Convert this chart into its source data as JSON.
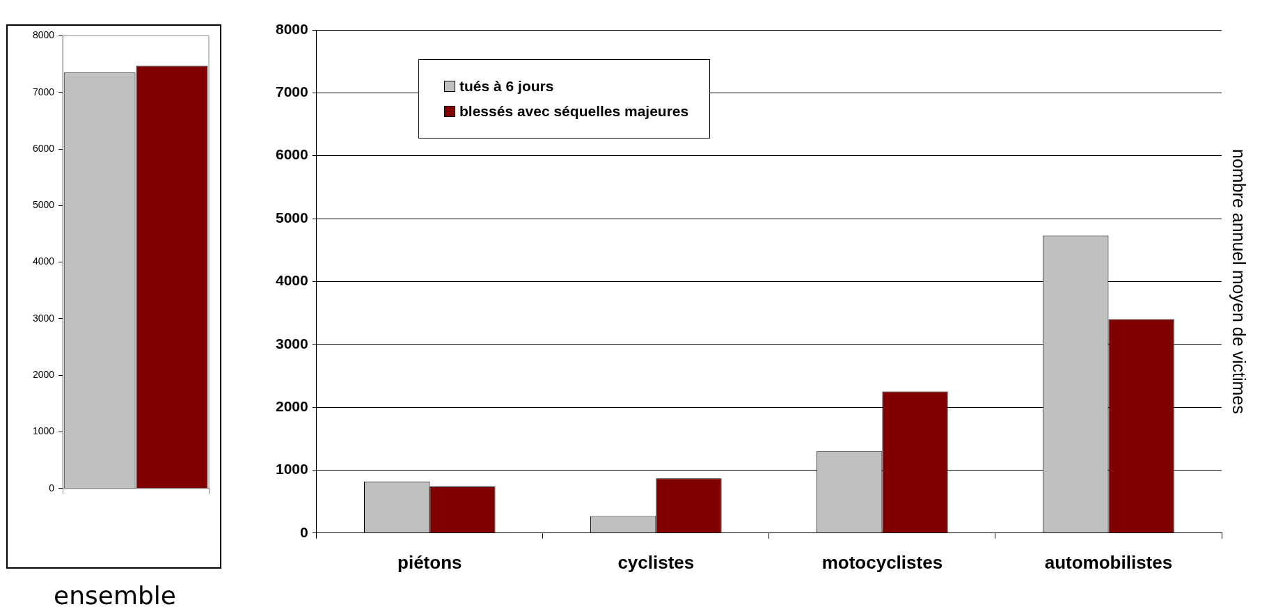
{
  "chart_data": [
    {
      "type": "bar",
      "xlabel": "ensemble",
      "categories": [
        null
      ],
      "series": [
        {
          "color": "#c0c0c0",
          "values": [
            7350
          ]
        },
        {
          "color": "#800000",
          "values": [
            7470
          ]
        }
      ],
      "ylim": [
        0,
        8000
      ],
      "yticks": [
        0,
        1000,
        2000,
        3000,
        4000,
        5000,
        6000,
        7000,
        8000
      ],
      "grid": false,
      "legend": false
    },
    {
      "type": "bar",
      "ylabel": "nombre annuel moyen de victimes",
      "categories": [
        "piétons",
        "cyclistes",
        "motocyclistes",
        "automobilistes"
      ],
      "series": [
        {
          "name": "tués à 6 jours",
          "color": "#c0c0c0",
          "values": [
            820,
            270,
            1300,
            4730
          ]
        },
        {
          "name": "blessés avec séquelles majeures",
          "color": "#800000",
          "values": [
            740,
            870,
            2250,
            3400
          ]
        }
      ],
      "ylim": [
        0,
        8000
      ],
      "yticks": [
        0,
        1000,
        2000,
        3000,
        4000,
        5000,
        6000,
        7000,
        8000
      ],
      "grid": "y",
      "legend": "top left"
    }
  ]
}
